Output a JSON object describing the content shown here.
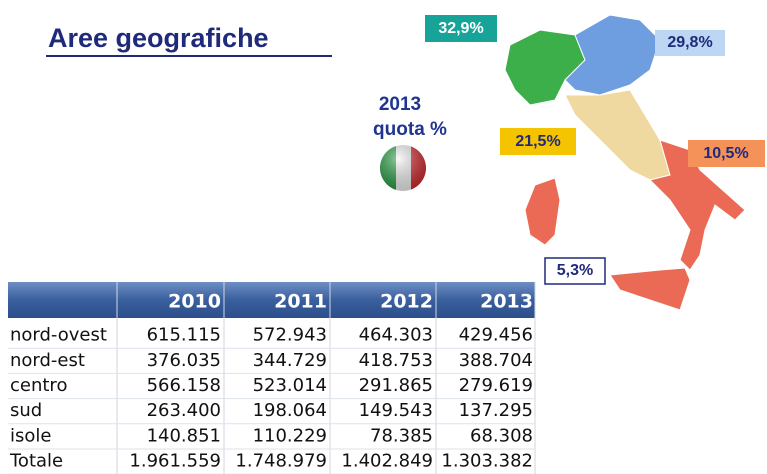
{
  "title": "Aree geografiche",
  "subtitle": {
    "year": "2013",
    "label": "quota %"
  },
  "map_labels": {
    "nord_ovest": "32,9%",
    "nord_est": "29,8%",
    "centro": "21,5%",
    "sud": "10,5%",
    "isole": "5,3%"
  },
  "table": {
    "columns": [
      "2010",
      "2011",
      "2012",
      "2013"
    ],
    "rows": [
      {
        "label": "nord-ovest",
        "values": [
          "615.115",
          "572.943",
          "464.303",
          "429.456"
        ]
      },
      {
        "label": "nord-est",
        "values": [
          "376.035",
          "344.729",
          "418.753",
          "388.704"
        ]
      },
      {
        "label": "centro",
        "values": [
          "566.158",
          "523.014",
          "291.865",
          "279.619"
        ]
      },
      {
        "label": "sud",
        "values": [
          "263.400",
          "198.064",
          "149.543",
          "137.295"
        ]
      },
      {
        "label": "isole",
        "values": [
          "140.851",
          "110.229",
          "78.385",
          "68.308"
        ]
      },
      {
        "label": "Totale",
        "values": [
          "1.961.559",
          "1.748.979",
          "1.402.849",
          "1.303.382"
        ]
      }
    ]
  }
}
